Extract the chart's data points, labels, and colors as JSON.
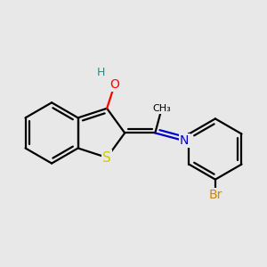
{
  "bg_color": "#e8e8e8",
  "bond_color": "#000000",
  "bond_width": 1.6,
  "atom_colors": {
    "S": "#cccc00",
    "O": "#ff0000",
    "N": "#0000cc",
    "Br": "#cc8800",
    "H": "#408080",
    "C": "#000000"
  },
  "font_size_atom": 10,
  "font_size_br": 10,
  "font_size_h": 9
}
